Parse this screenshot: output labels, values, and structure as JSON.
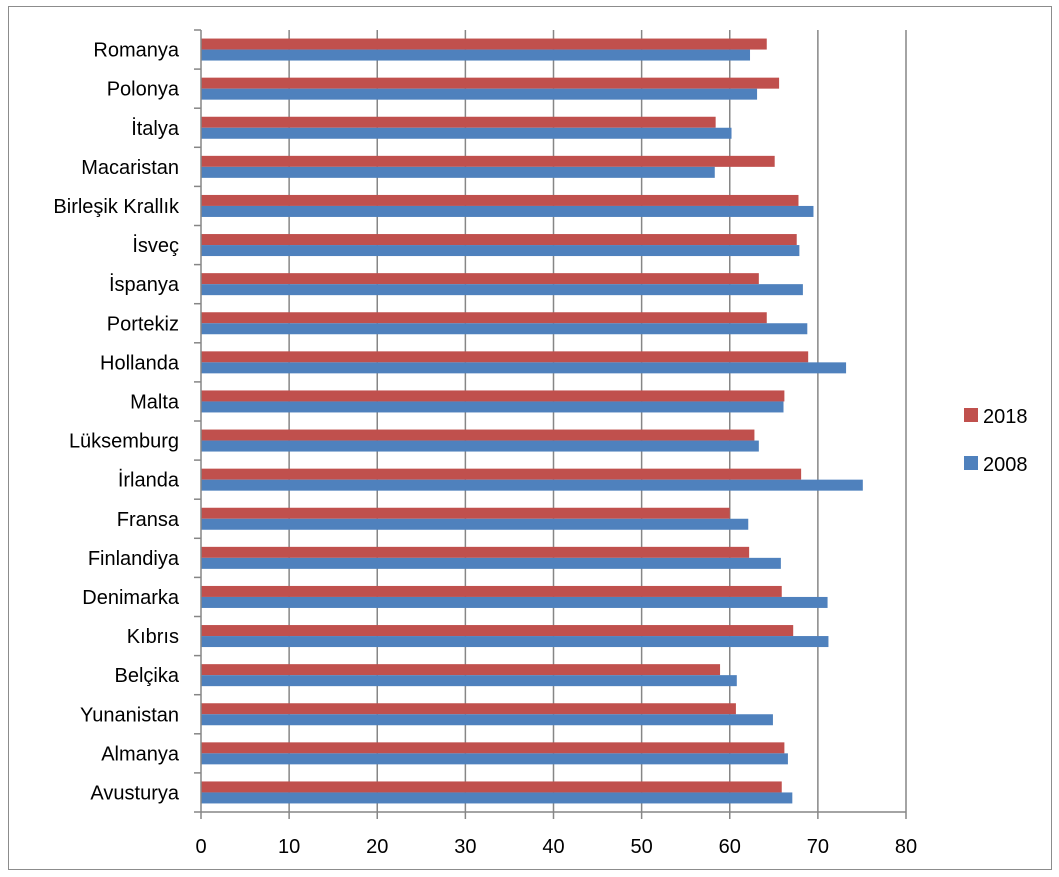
{
  "chart_data": {
    "type": "bar",
    "orientation": "horizontal",
    "categories": [
      "Romanya",
      "Polonya",
      "İtalya",
      "Macaristan",
      "Birleşik Krallık",
      "İsveç",
      "İspanya",
      "Portekiz",
      "Hollanda",
      "Malta",
      "Lüksemburg",
      "İrlanda",
      "Fransa",
      "Finlandiya",
      "Denimarka",
      "Kıbrıs",
      "Belçika",
      "Yunanistan",
      "Almanya",
      "Avusturya"
    ],
    "series": [
      {
        "name": "2018",
        "color": "#c0504d",
        "values": [
          64.2,
          65.6,
          58.4,
          65.1,
          67.8,
          67.6,
          63.3,
          64.2,
          68.9,
          66.2,
          62.8,
          68.1,
          60.0,
          62.2,
          65.9,
          67.2,
          58.9,
          60.7,
          66.2,
          65.9
        ]
      },
      {
        "name": "2008",
        "color": "#4f81bd",
        "values": [
          62.3,
          63.1,
          60.2,
          58.3,
          69.5,
          67.9,
          68.3,
          68.8,
          73.2,
          66.1,
          63.3,
          75.1,
          62.1,
          65.8,
          71.1,
          71.2,
          60.8,
          64.9,
          66.6,
          67.1
        ]
      }
    ],
    "xlim": [
      0,
      80
    ],
    "xticks": [
      "0",
      "10",
      "20",
      "30",
      "40",
      "50",
      "60",
      "70",
      "80"
    ],
    "grid": true,
    "legend_position": "right",
    "title": "",
    "xlabel": "",
    "ylabel": ""
  }
}
